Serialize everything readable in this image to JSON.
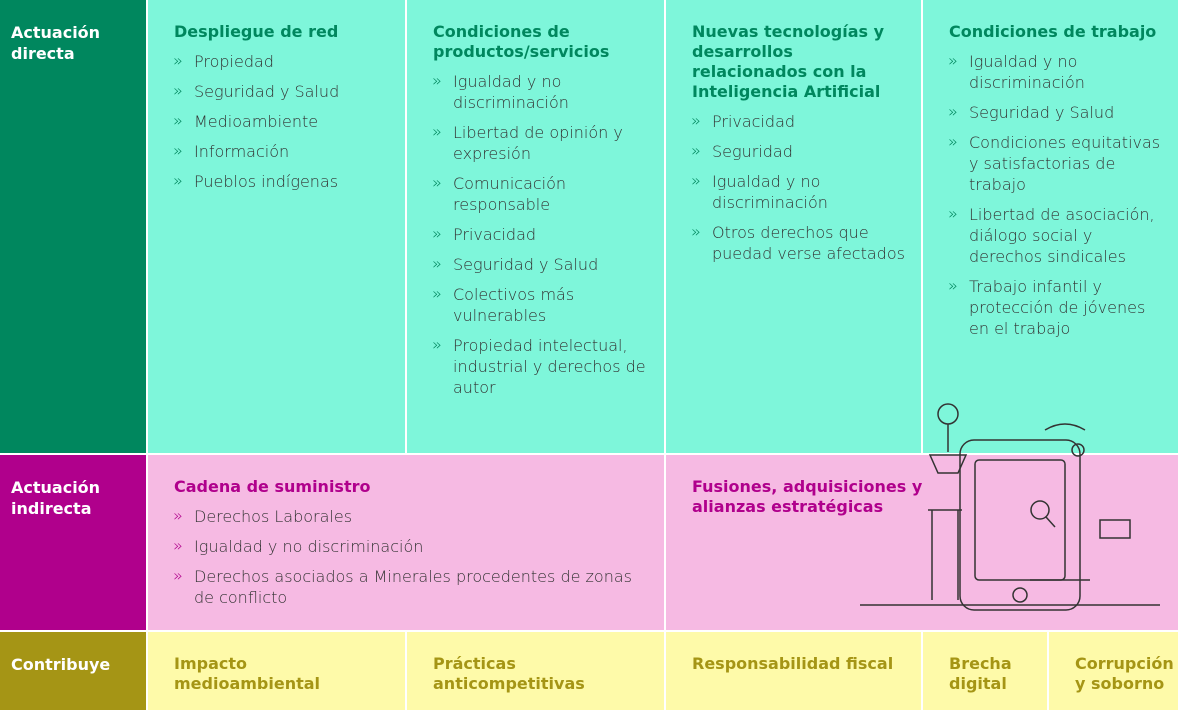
{
  "rows": [
    {
      "label": "Actuación directa",
      "cells": [
        {
          "title": "Despliegue de red",
          "items": [
            "Propiedad",
            "Seguridad y Salud",
            "Medioambiente",
            "Información",
            "Pueblos indígenas"
          ]
        },
        {
          "title": "Condiciones de productos/servicios",
          "items": [
            "Igualdad y no discriminación",
            "Libertad de opinión y expresión",
            "Comunicación responsable",
            "Privacidad",
            "Seguridad y Salud",
            "Colectivos más vulnerables",
            "Propiedad intelectual, industrial y derechos de autor"
          ]
        },
        {
          "title": "Nuevas tecnologías y desarrollos relacionados con la Inteligencia Artificial",
          "items": [
            "Privacidad",
            "Seguridad",
            "Igualdad y no discriminación",
            "Otros derechos que puedad verse afectados"
          ]
        },
        {
          "title": "Condiciones de trabajo",
          "items": [
            "Igualdad y no discriminación",
            "Seguridad y Salud",
            "Condiciones equitativas y satisfactorias de trabajo",
            "Libertad de asociación, diálogo social y derechos sindicales",
            "Trabajo infantil y protección de jóvenes en el trabajo"
          ]
        }
      ]
    },
    {
      "label": "Actuación indirecta",
      "cells": [
        {
          "title": "Cadena de suministro",
          "items": [
            "Derechos Laborales",
            "Igualdad y no discriminación",
            "Derechos asociados a Minerales procedentes de zonas de conflicto"
          ]
        },
        {
          "title": "Fusiones, adquisiciones y alianzas estratégicas",
          "items": []
        }
      ]
    },
    {
      "label": "Contribuye",
      "cells": [
        {
          "title": "Impacto medioambiental",
          "items": []
        },
        {
          "title": "Prácticas anticompetitivas",
          "items": []
        },
        {
          "title": "Responsabilidad fiscal",
          "items": []
        },
        {
          "title": "Brecha digital",
          "items": []
        },
        {
          "title": "Corrupción y soborno",
          "items": []
        }
      ]
    }
  ]
}
